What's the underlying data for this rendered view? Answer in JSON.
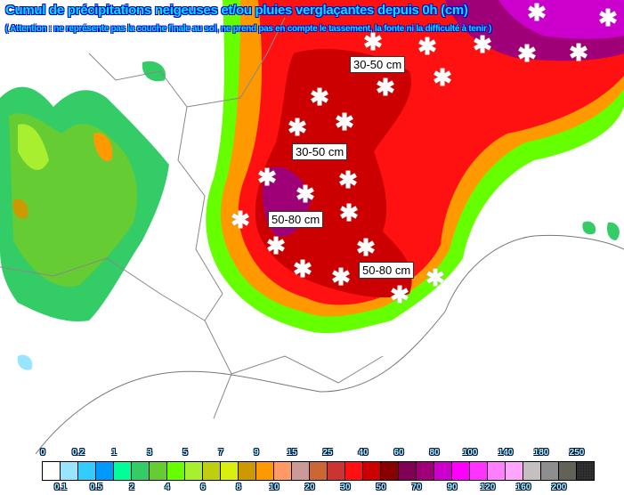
{
  "header": {
    "title": "Cumul de précipitations neigeuses et/ou pluies verglaçantes depuis 0h (cm)",
    "subtitle": "( Attention : ne représente pas la couche finale au sol, ne prend pas en compte le tassement, la fonte ni la difficulté à tenir )"
  },
  "map": {
    "range_labels": [
      "30-50 cm",
      "30-50 cm",
      "50-80 cm",
      "50-80 cm"
    ],
    "marker_icon": "snowflake-icon"
  },
  "legend": {
    "top_labels": [
      "0",
      "0.2",
      "1",
      "3",
      "5",
      "7",
      "9",
      "15",
      "25",
      "40",
      "60",
      "80",
      "100",
      "140",
      "180",
      "250"
    ],
    "bottom_labels": [
      "0.1",
      "0.5",
      "2",
      "4",
      "6",
      "8",
      "10",
      "20",
      "30",
      "50",
      "70",
      "90",
      "120",
      "160",
      "200"
    ],
    "colors": [
      "#ffffff",
      "#99e5ff",
      "#33ccff",
      "#0099ff",
      "#00ff99",
      "#33cc66",
      "#66cc33",
      "#66ff00",
      "#a8ef30",
      "#bfcf10",
      "#d8ef10",
      "#cc9900",
      "#ff9900",
      "#ff9966",
      "#cc9999",
      "#cc6633",
      "#cc3333",
      "#ff1111",
      "#cc0000",
      "#880000",
      "#7f0055",
      "#9f0077",
      "#cc00cc",
      "#ff00ff",
      "#ff33ff",
      "#ff80ff",
      "#ffa5ff",
      "#c5bfbf",
      "#8e8e8e",
      "#626259",
      "#333333"
    ]
  }
}
